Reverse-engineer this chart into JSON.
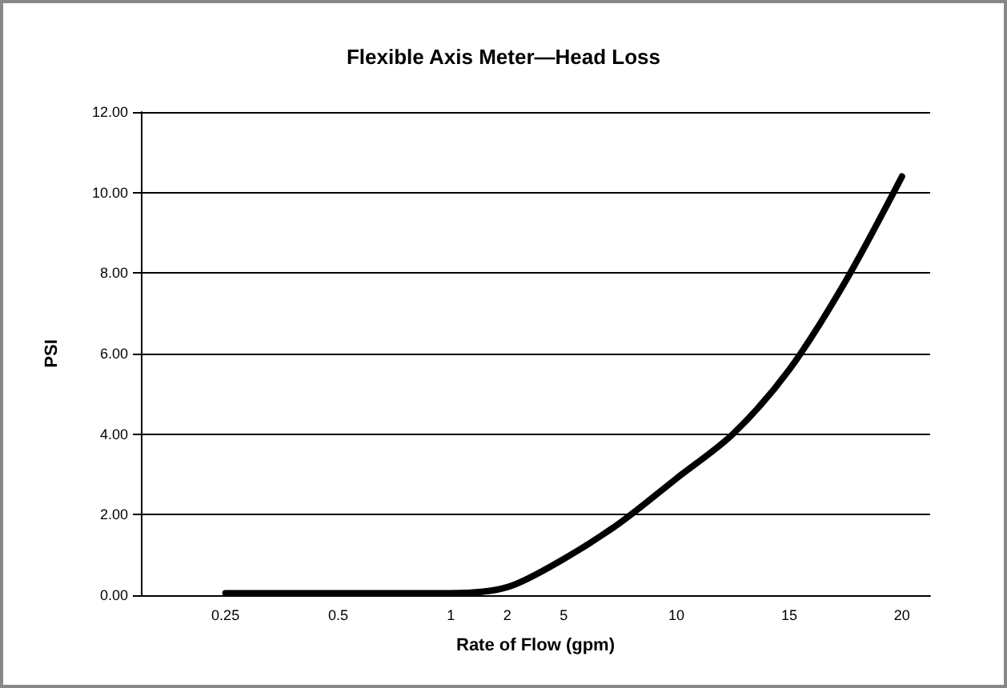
{
  "chart_data": {
    "type": "line",
    "title": "Flexible Axis Meter—Head Loss",
    "xlabel": "Rate of Flow (gpm)",
    "ylabel": "PSI",
    "categories": [
      null,
      "0.25",
      null,
      "0.5",
      null,
      "1",
      "2",
      "5",
      null,
      "10",
      null,
      "15",
      null,
      "20"
    ],
    "series": [
      {
        "color": "#000000",
        "values": [
          null,
          0.05,
          0.05,
          0.05,
          0.05,
          0.05,
          0.2,
          0.9,
          1.8,
          2.9,
          4.0,
          5.6,
          7.8,
          10.4
        ]
      }
    ],
    "ylim": [
      0,
      12
    ],
    "yticks": [
      {
        "value": 0,
        "label": "0.00"
      },
      {
        "value": 2,
        "label": "2.00"
      },
      {
        "value": 4,
        "label": "4.00"
      },
      {
        "value": 6,
        "label": "6.00"
      },
      {
        "value": 8,
        "label": "8.00"
      },
      {
        "value": 10,
        "label": "10.00"
      },
      {
        "value": 12,
        "label": "12.00"
      }
    ],
    "grid": "y",
    "marker": "none",
    "line_style": "solid"
  }
}
